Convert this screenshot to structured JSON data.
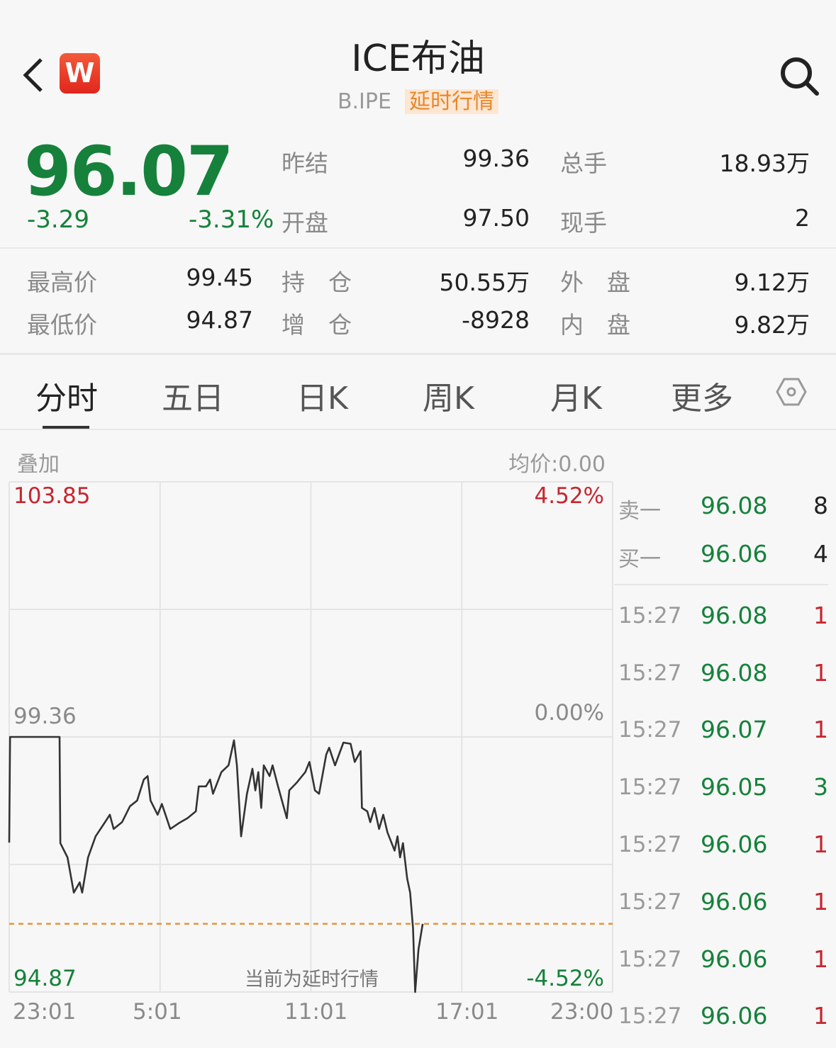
{
  "header": {
    "title": "ICE布油",
    "code": "B.IPE",
    "delay_badge": "延时行情",
    "app_logo_letter": "W",
    "icons": {
      "back": "chevron-left-icon",
      "search": "search-icon",
      "settings": "hexagon-settings-icon"
    }
  },
  "quote": {
    "price": "96.07",
    "change": "-3.29",
    "change_pct": "-3.31%",
    "stats": [
      {
        "label": "昨结",
        "value": "99.36"
      },
      {
        "label": "总手",
        "value": "18.93万"
      },
      {
        "label": "开盘",
        "value": "97.50"
      },
      {
        "label": "现手",
        "value": "2"
      },
      {
        "label": "最高价",
        "value": "99.45"
      },
      {
        "label": "持　仓",
        "value": "50.55万"
      },
      {
        "label": "外　盘",
        "value": "9.12万"
      },
      {
        "label": "最低价",
        "value": "94.87"
      },
      {
        "label": "增　仓",
        "value": "-8928"
      },
      {
        "label": "内　盘",
        "value": "9.82万"
      }
    ]
  },
  "tabs": [
    {
      "label": "分时",
      "active": true
    },
    {
      "label": "五日"
    },
    {
      "label": "日K"
    },
    {
      "label": "周K"
    },
    {
      "label": "月K"
    },
    {
      "label": "更多"
    }
  ],
  "chart_toolbar": {
    "overlay": "叠加",
    "avg_price": "均价:0.00"
  },
  "chart_data": {
    "type": "line",
    "ylim": [
      94.87,
      103.85
    ],
    "y_left_labels": {
      "top": "103.85",
      "mid": "99.36",
      "bottom": "94.87"
    },
    "y_right_labels": {
      "top": "4.52%",
      "mid": "0.00%",
      "bottom": "-4.52%"
    },
    "x_tick_labels": [
      "23:01",
      "5:01",
      "11:01",
      "17:01",
      "23:00"
    ],
    "grid": true,
    "reference_price": 99.36,
    "current_price_line": 96.07,
    "watermark": "当前为延时行情",
    "colors": {
      "line": "#333333",
      "current_line": "#e8943a",
      "up": "#c62630",
      "down": "#16813b"
    },
    "points": [
      [
        "23:01",
        97.5
      ],
      [
        "23:03",
        99.36
      ],
      [
        "01:01",
        99.36
      ],
      [
        "01:03",
        97.49
      ],
      [
        "01:20",
        97.24
      ],
      [
        "01:35",
        96.62
      ],
      [
        "01:49",
        96.8
      ],
      [
        "01:55",
        96.62
      ],
      [
        "02:09",
        97.24
      ],
      [
        "02:27",
        97.61
      ],
      [
        "02:44",
        97.8
      ],
      [
        "03:01",
        97.99
      ],
      [
        "03:10",
        97.74
      ],
      [
        "03:30",
        97.86
      ],
      [
        "03:49",
        98.14
      ],
      [
        "04:06",
        98.24
      ],
      [
        "04:22",
        98.61
      ],
      [
        "04:31",
        98.67
      ],
      [
        "04:38",
        98.24
      ],
      [
        "04:55",
        97.99
      ],
      [
        "05:05",
        98.18
      ],
      [
        "05:25",
        97.74
      ],
      [
        "05:45",
        97.84
      ],
      [
        "06:06",
        97.93
      ],
      [
        "06:26",
        98.05
      ],
      [
        "06:33",
        98.49
      ],
      [
        "06:50",
        98.49
      ],
      [
        "07:00",
        98.61
      ],
      [
        "07:07",
        98.36
      ],
      [
        "07:27",
        98.74
      ],
      [
        "07:44",
        98.86
      ],
      [
        "07:57",
        99.3
      ],
      [
        "08:04",
        98.86
      ],
      [
        "08:14",
        97.61
      ],
      [
        "08:28",
        98.36
      ],
      [
        "08:41",
        98.8
      ],
      [
        "08:48",
        98.42
      ],
      [
        "08:55",
        98.74
      ],
      [
        "09:02",
        98.11
      ],
      [
        "09:08",
        98.86
      ],
      [
        "09:22",
        98.67
      ],
      [
        "09:29",
        98.86
      ],
      [
        "09:42",
        98.49
      ],
      [
        "10:03",
        97.93
      ],
      [
        "10:09",
        98.42
      ],
      [
        "10:26",
        98.55
      ],
      [
        "10:47",
        98.74
      ],
      [
        "10:57",
        98.92
      ],
      [
        "11:10",
        98.42
      ],
      [
        "11:20",
        98.36
      ],
      [
        "11:37",
        99.05
      ],
      [
        "11:44",
        99.17
      ],
      [
        "11:58",
        98.86
      ],
      [
        "12:18",
        99.26
      ],
      [
        "12:35",
        99.24
      ],
      [
        "12:45",
        98.92
      ],
      [
        "12:59",
        99.11
      ],
      [
        "13:02",
        98.11
      ],
      [
        "13:15",
        98.05
      ],
      [
        "13:22",
        97.86
      ],
      [
        "13:32",
        98.11
      ],
      [
        "13:43",
        97.74
      ],
      [
        "13:53",
        97.99
      ],
      [
        "14:03",
        97.68
      ],
      [
        "14:20",
        97.36
      ],
      [
        "14:27",
        97.61
      ],
      [
        "14:33",
        97.24
      ],
      [
        "14:40",
        97.49
      ],
      [
        "14:50",
        96.87
      ],
      [
        "14:57",
        96.62
      ],
      [
        "15:04",
        95.99
      ],
      [
        "15:09",
        94.87
      ],
      [
        "15:17",
        95.62
      ],
      [
        "15:27",
        96.07
      ]
    ]
  },
  "order_book": [
    {
      "label": "卖一",
      "price": "96.08",
      "qty": "8"
    },
    {
      "label": "买一",
      "price": "96.06",
      "qty": "4"
    }
  ],
  "trades": [
    {
      "time": "15:27",
      "price": "96.08",
      "qty": "1",
      "side": "up"
    },
    {
      "time": "15:27",
      "price": "96.08",
      "qty": "1",
      "side": "up"
    },
    {
      "time": "15:27",
      "price": "96.07",
      "qty": "1",
      "side": "up"
    },
    {
      "time": "15:27",
      "price": "96.05",
      "qty": "3",
      "side": "down"
    },
    {
      "time": "15:27",
      "price": "96.06",
      "qty": "1",
      "side": "up"
    },
    {
      "time": "15:27",
      "price": "96.06",
      "qty": "1",
      "side": "up"
    },
    {
      "time": "15:27",
      "price": "96.06",
      "qty": "1",
      "side": "up"
    },
    {
      "time": "15:27",
      "price": "96.06",
      "qty": "1",
      "side": "up"
    }
  ]
}
